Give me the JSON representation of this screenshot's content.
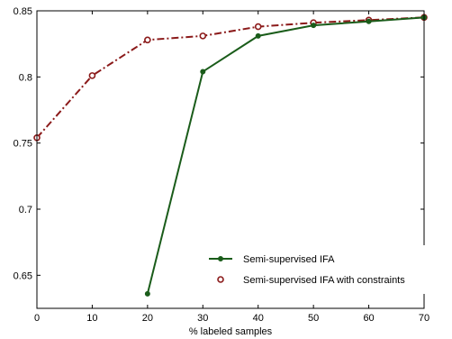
{
  "chart_data": {
    "type": "line",
    "title": "",
    "xlabel": "% labeled samples",
    "ylabel": "",
    "xlim": [
      0,
      70
    ],
    "ylim": [
      0.625,
      0.85
    ],
    "xticks": [
      0,
      10,
      20,
      30,
      40,
      50,
      60,
      70
    ],
    "yticks": [
      0.65,
      0.7,
      0.75,
      0.8,
      0.85
    ],
    "xtick_labels": [
      "0",
      "10",
      "20",
      "30",
      "40",
      "50",
      "60",
      "70"
    ],
    "ytick_labels": [
      "0.65",
      "0.7",
      "0.75",
      "0.8",
      "0.85"
    ],
    "grid": false,
    "legend_position": "lower-right",
    "series": [
      {
        "name": "Semi-supervised IFA",
        "x": [
          20,
          30,
          40,
          50,
          60,
          70
        ],
        "y": [
          0.636,
          0.804,
          0.831,
          0.839,
          0.842,
          0.845
        ],
        "color": "#1a5c1a",
        "line_style": "solid",
        "marker": "filled-dot"
      },
      {
        "name": "Semi-supervised IFA with constraints",
        "x": [
          0,
          10,
          20,
          30,
          40,
          50,
          60,
          70
        ],
        "y": [
          0.754,
          0.801,
          0.828,
          0.831,
          0.838,
          0.841,
          0.843,
          0.845
        ],
        "color": "#8b1a1a",
        "line_style": "dash-dot",
        "marker": "open-circle"
      }
    ]
  }
}
